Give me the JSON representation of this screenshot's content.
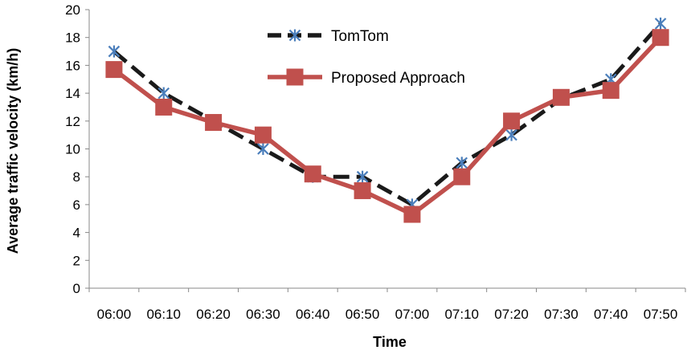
{
  "chart_data": {
    "type": "line",
    "title": "",
    "xlabel": "Time",
    "ylabel": "Average traffic velocity (km/h)",
    "ylim": [
      0,
      20
    ],
    "yticks": [
      0,
      2,
      4,
      6,
      8,
      10,
      12,
      14,
      16,
      18,
      20
    ],
    "categories": [
      "06:00",
      "06:10",
      "06:20",
      "06:30",
      "06:40",
      "06:50",
      "07:00",
      "07:10",
      "07:20",
      "07:30",
      "07:40",
      "07:50"
    ],
    "grid": false,
    "legend_position": "top-center",
    "series": [
      {
        "name": "TomTom",
        "values": [
          17,
          14,
          12,
          10,
          8,
          8,
          6,
          9,
          11,
          13.6,
          15,
          19
        ],
        "line_color": "#1a1a1a",
        "marker_color": "#4a7ebb",
        "line_style": "dashed",
        "marker": "asterisk"
      },
      {
        "name": "Proposed Approach",
        "values": [
          15.7,
          13,
          11.9,
          11,
          8.2,
          7,
          5.3,
          8,
          12,
          13.7,
          14.2,
          18
        ],
        "line_color": "#c0504d",
        "marker_color": "#c0504d",
        "line_style": "solid",
        "marker": "square"
      }
    ]
  }
}
